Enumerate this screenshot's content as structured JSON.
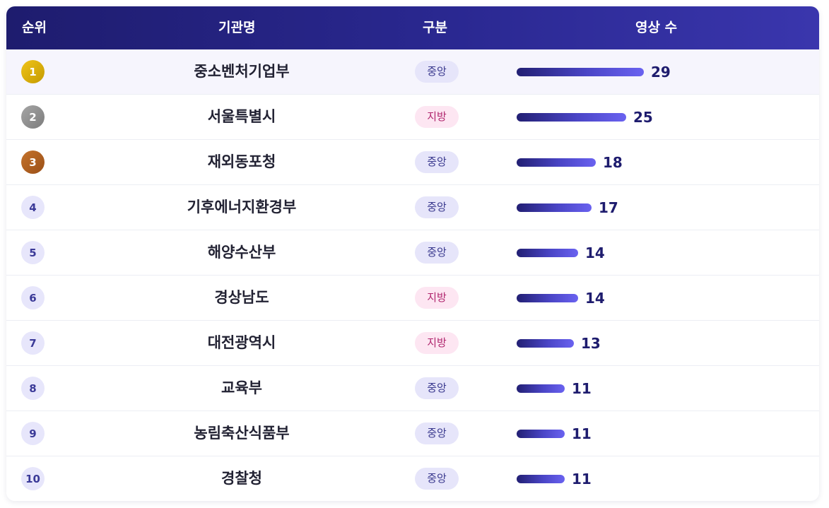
{
  "table": {
    "headers": {
      "rank": "순위",
      "name": "기관명",
      "type": "구분",
      "count": "영상 수"
    },
    "max_count": 29,
    "rows": [
      {
        "rank": "1",
        "name": "중소벤처기업부",
        "type": "중앙",
        "type_kind": "central",
        "count": 29,
        "count_label": "29",
        "medal": "gold"
      },
      {
        "rank": "2",
        "name": "서울특별시",
        "type": "지방",
        "type_kind": "local",
        "count": 25,
        "count_label": "25",
        "medal": "silver"
      },
      {
        "rank": "3",
        "name": "재외동포청",
        "type": "중앙",
        "type_kind": "central",
        "count": 18,
        "count_label": "18",
        "medal": "bronze"
      },
      {
        "rank": "4",
        "name": "기후에너지환경부",
        "type": "중앙",
        "type_kind": "central",
        "count": 17,
        "count_label": "17",
        "medal": "plain"
      },
      {
        "rank": "5",
        "name": "해양수산부",
        "type": "중앙",
        "type_kind": "central",
        "count": 14,
        "count_label": "14",
        "medal": "plain"
      },
      {
        "rank": "6",
        "name": "경상남도",
        "type": "지방",
        "type_kind": "local",
        "count": 14,
        "count_label": "14",
        "medal": "plain"
      },
      {
        "rank": "7",
        "name": "대전광역시",
        "type": "지방",
        "type_kind": "local",
        "count": 13,
        "count_label": "13",
        "medal": "plain"
      },
      {
        "rank": "8",
        "name": "교육부",
        "type": "중앙",
        "type_kind": "central",
        "count": 11,
        "count_label": "11",
        "medal": "plain"
      },
      {
        "rank": "9",
        "name": "농림축산식품부",
        "type": "중앙",
        "type_kind": "central",
        "count": 11,
        "count_label": "11",
        "medal": "plain"
      },
      {
        "rank": "10",
        "name": "경찰청",
        "type": "중앙",
        "type_kind": "central",
        "count": 11,
        "count_label": "11",
        "medal": "plain"
      }
    ]
  },
  "colors": {
    "header_start": "#1e1c6e",
    "header_end": "#3a36ad",
    "bar_start": "#221f73",
    "bar_end": "#6a62f0",
    "central_bg": "#e6e5fa",
    "local_bg": "#fde6f2",
    "highlight_row": "#f6f5fd"
  }
}
